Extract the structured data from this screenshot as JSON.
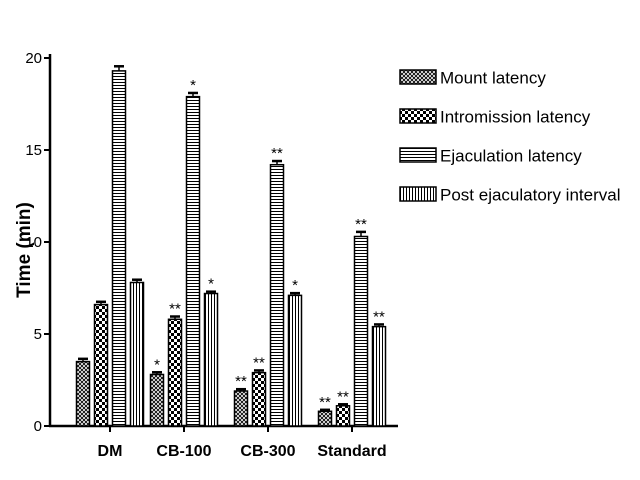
{
  "chart_data": {
    "type": "bar",
    "ylabel": "Time (min)",
    "xlabel": "",
    "ylim": [
      0,
      20
    ],
    "yticks": [
      0,
      5,
      10,
      15,
      20
    ],
    "categories": [
      "DM",
      "CB-100",
      "CB-300",
      "Standard"
    ],
    "legend_position": "right",
    "grid": false,
    "series": [
      {
        "name": "Mount latency",
        "pattern": "crosshatch-fine",
        "values": [
          3.5,
          2.8,
          1.9,
          0.8
        ],
        "errors": [
          0.15,
          0.12,
          0.1,
          0.08
        ],
        "significance": [
          "",
          "*",
          "**",
          "**"
        ]
      },
      {
        "name": "Intromission latency",
        "pattern": "checker",
        "values": [
          6.6,
          5.8,
          2.9,
          1.1
        ],
        "errors": [
          0.15,
          0.15,
          0.12,
          0.08
        ],
        "significance": [
          "",
          "**",
          "**",
          "**"
        ]
      },
      {
        "name": "Ejaculation latency",
        "pattern": "horizontal-lines",
        "values": [
          19.3,
          17.9,
          14.2,
          10.3
        ],
        "errors": [
          0.25,
          0.2,
          0.2,
          0.25
        ],
        "significance": [
          "",
          "*",
          "**",
          "**"
        ]
      },
      {
        "name": "Post ejaculatory interval",
        "pattern": "vertical-lines",
        "values": [
          7.8,
          7.2,
          7.1,
          5.4
        ],
        "errors": [
          0.15,
          0.1,
          0.12,
          0.12
        ],
        "significance": [
          "",
          "*",
          "*",
          "**"
        ]
      }
    ]
  }
}
